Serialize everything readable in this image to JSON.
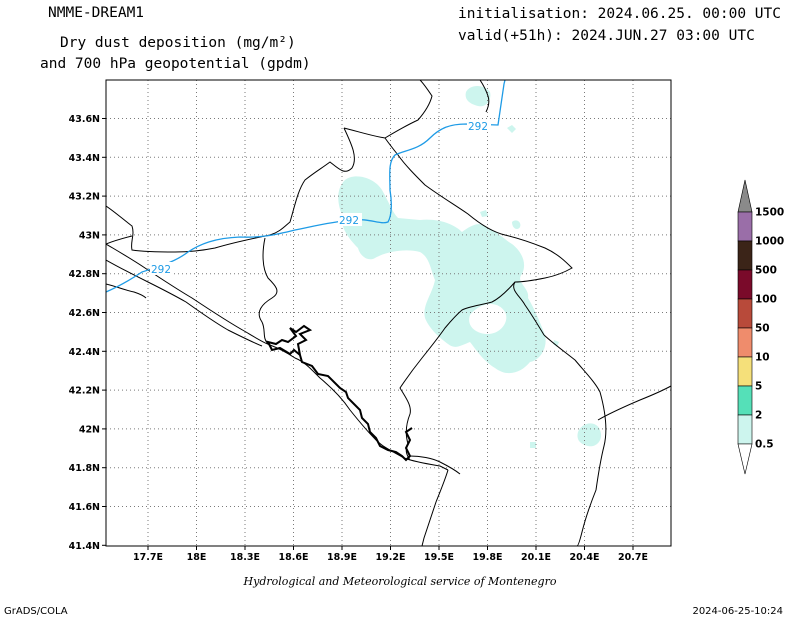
{
  "header": {
    "model": "NMME-DREAM1",
    "title_line1": "Dry dust deposition (mg/m²)",
    "title_line2": "and 700 hPa geopotential (gpdm)",
    "init": "initialisation: 2024.06.25. 00:00 UTC",
    "valid": "valid(+51h): 2024.JUN.27 03:00 UTC"
  },
  "map": {
    "lon_ticks": [
      "17.7E",
      "18E",
      "18.3E",
      "18.6E",
      "18.9E",
      "19.2E",
      "19.5E",
      "19.8E",
      "20.1E",
      "20.4E",
      "20.7E"
    ],
    "lat_ticks": [
      "43.6N",
      "43.4N",
      "43.2N",
      "43N",
      "42.8N",
      "42.6N",
      "42.4N",
      "42.2N",
      "42N",
      "41.8N",
      "41.6N",
      "41.4N"
    ],
    "contour_label": "292",
    "contour_color": "#1e9be6",
    "dust_color": "#cdf5ee",
    "grid": true
  },
  "legend": {
    "levels": [
      "1500",
      "1000",
      "500",
      "100",
      "50",
      "10",
      "5",
      "2",
      "0.5"
    ],
    "colors": [
      "#8a8a8a",
      "#9a6ea8",
      "#3b2418",
      "#7a0a2a",
      "#b84a3a",
      "#ef8c6c",
      "#f5e07a",
      "#55e0b8",
      "#cdf5ee",
      "#ffffff"
    ]
  },
  "footer": {
    "credit": "Hydrological and Meteorological service of Montenegro",
    "software": "GrADS/COLA",
    "timestamp": "2024-06-25-10:24"
  }
}
